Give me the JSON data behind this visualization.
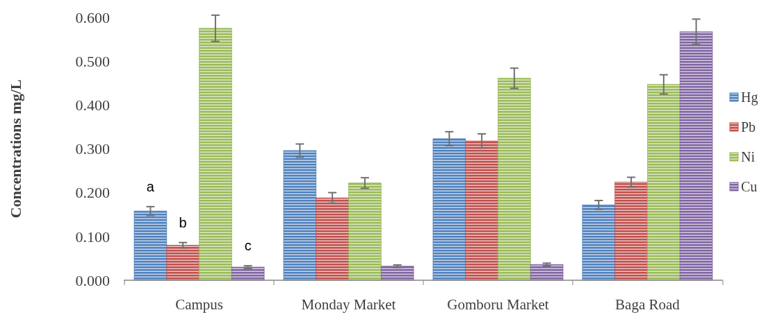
{
  "chart_data": {
    "type": "bar",
    "ylabel": "Concentrations mg/L",
    "categories": [
      "Campus",
      "Monday Market",
      "Gomboru Market",
      "Baga Road"
    ],
    "series": [
      {
        "name": "Hg",
        "color": "#4f81bd",
        "values": [
          0.158,
          0.296,
          0.323,
          0.172
        ],
        "errors": [
          0.01,
          0.015,
          0.016,
          0.01
        ]
      },
      {
        "name": "Pb",
        "color": "#c0504d",
        "values": [
          0.08,
          0.188,
          0.318,
          0.224
        ],
        "errors": [
          0.006,
          0.012,
          0.016,
          0.011
        ]
      },
      {
        "name": "Ni",
        "color": "#9bbb59",
        "values": [
          0.575,
          0.222,
          0.461,
          0.447
        ],
        "errors": [
          0.03,
          0.012,
          0.023,
          0.022
        ]
      },
      {
        "name": "Cu",
        "color": "#8064a2",
        "values": [
          0.03,
          0.032,
          0.036,
          0.567
        ],
        "errors": [
          0.003,
          0.003,
          0.003,
          0.029
        ]
      }
    ],
    "ylim": [
      0,
      0.6
    ],
    "yticks": [
      {
        "value": 0,
        "label": "0.000"
      },
      {
        "value": 0.1,
        "label": "0.100"
      },
      {
        "value": 0.2,
        "label": "0.200"
      },
      {
        "value": 0.3,
        "label": "0.300"
      },
      {
        "value": 0.4,
        "label": "0.400"
      },
      {
        "value": 0.5,
        "label": "0.500"
      },
      {
        "value": 0.6,
        "label": "0.600"
      }
    ],
    "annotations": [
      "a",
      "b",
      "c"
    ],
    "grid": false,
    "legend": "right"
  }
}
